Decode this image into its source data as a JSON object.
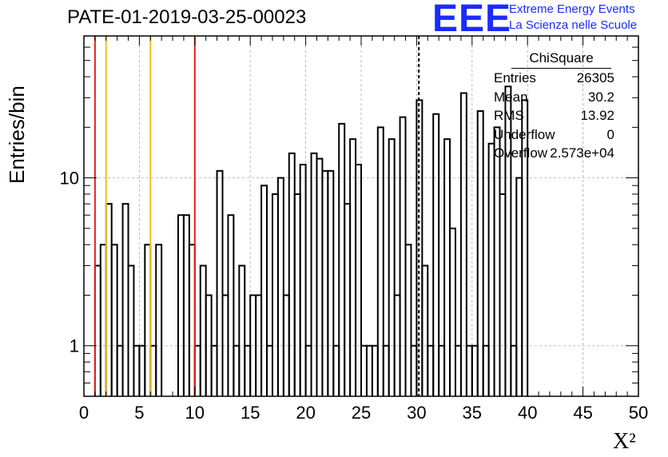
{
  "chart_data": {
    "type": "bar",
    "style": "step-histogram",
    "title": "PATE-01-2019-03-25-00023",
    "xlabel": "X²",
    "ylabel": "Entries/bin",
    "xlim": [
      0,
      50
    ],
    "ylim": [
      0.5,
      70
    ],
    "ylog": true,
    "grid": true,
    "bin_width": 0.5,
    "x_ticks": [
      0,
      5,
      10,
      15,
      20,
      25,
      30,
      35,
      40,
      45,
      50
    ],
    "y_ticks": [
      1,
      10
    ],
    "values": [
      0,
      0,
      3,
      4,
      7,
      4,
      1,
      7,
      3,
      1,
      1,
      4,
      1,
      4,
      0,
      0,
      0,
      6,
      6,
      4,
      1,
      3,
      2,
      1,
      11,
      2,
      6,
      1,
      3,
      1,
      2,
      2,
      9,
      1,
      8,
      10,
      2,
      14,
      8,
      12,
      1,
      14,
      13,
      11,
      11,
      1,
      21,
      7,
      17,
      12,
      1,
      1,
      1,
      20,
      1,
      17,
      2,
      23,
      4,
      1,
      29,
      3,
      1,
      24,
      1,
      17,
      5,
      1,
      32,
      1,
      1,
      25,
      1,
      16,
      20,
      8,
      35,
      1,
      10,
      29
    ],
    "vertical_lines": [
      {
        "x": 1,
        "color": "#e62020"
      },
      {
        "x": 2,
        "color": "#f0c020"
      },
      {
        "x": 6,
        "color": "#f0c020"
      },
      {
        "x": 10,
        "color": "#e62020"
      },
      {
        "x": 30.2,
        "color": "#000000",
        "style": "dashed"
      }
    ],
    "stats_box": {
      "title": "ChiSquare",
      "rows": [
        {
          "name": "Entries",
          "value": "26305"
        },
        {
          "name": "Mean",
          "value": "30.2"
        },
        {
          "name": "RMS",
          "value": "13.92"
        },
        {
          "name": "Underflow",
          "value": "0"
        },
        {
          "name": "Overflow",
          "value": "2.573e+04"
        }
      ]
    }
  },
  "logo": {
    "mark": "EEE",
    "line1": "Extreme Energy Events",
    "line2": "La Scienza nelle Scuole"
  },
  "colors": {
    "logo": "#1a2bff",
    "red_line": "#e62020",
    "yellow_line": "#f0c020",
    "grid": "#aaaaaa"
  }
}
